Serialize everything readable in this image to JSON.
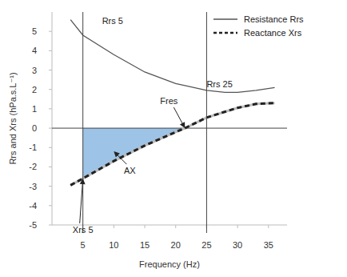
{
  "chart_data": {
    "type": "line",
    "x_label": "Frequency (Hz)",
    "y_label": "Rrs and Xrs (hPa.s.L⁻¹)",
    "x": [
      3,
      5,
      10,
      15,
      20,
      21.5,
      25,
      28,
      30,
      33,
      36
    ],
    "series": [
      {
        "name": "Resistance Rrs",
        "color": "#555555",
        "line_style": "solid",
        "values": [
          5.6,
          4.8,
          3.8,
          2.9,
          2.3,
          2.2,
          1.95,
          1.85,
          1.85,
          1.95,
          2.1
        ]
      },
      {
        "name": "Reactance Xrs",
        "color": "#222222",
        "line_style": "dashed",
        "values": [
          -2.95,
          -2.6,
          -1.7,
          -0.9,
          -0.2,
          0,
          0.55,
          0.85,
          1.05,
          1.25,
          1.3
        ]
      }
    ],
    "shaded_area": {
      "series": 1,
      "x_from": 5,
      "x_to": 21.5,
      "color": "#9dc3e6"
    },
    "reference_x": [
      5,
      25
    ],
    "reference_y": [
      0
    ],
    "annotations": [
      {
        "text": "Rrs 5",
        "x": 5,
        "y": 4.8
      },
      {
        "text": "Rrs 25",
        "x": 25,
        "y": 1.95
      },
      {
        "text": "Fres",
        "x": 21.5,
        "y": 0
      },
      {
        "text": "AX",
        "x": 10,
        "y": -1.2
      },
      {
        "text": "Xrs 5",
        "x": 5,
        "y": -2.6
      }
    ],
    "xlim": [
      0,
      38
    ],
    "ylim": [
      -5,
      6
    ],
    "xticks": [
      5,
      10,
      15,
      20,
      25,
      30,
      35
    ],
    "yticks": [
      -5,
      -4,
      -3,
      -2,
      -1,
      0,
      1,
      2,
      3,
      4,
      5
    ],
    "legend": "upper right",
    "grid": false
  }
}
